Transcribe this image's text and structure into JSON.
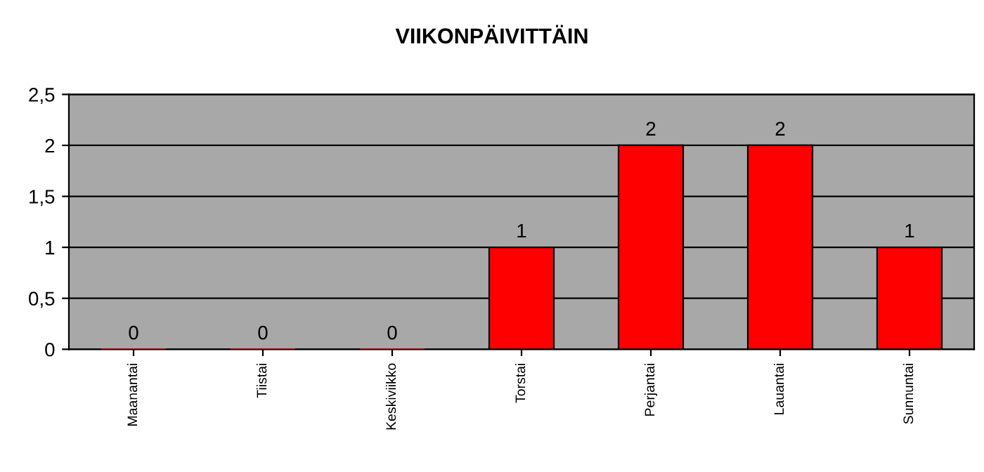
{
  "chart_data": {
    "type": "bar",
    "title": "VIIKONPÄIVITTÄIN",
    "categories": [
      "Maanantai",
      "Tiistai",
      "Keskiviikko",
      "Torstai",
      "Perjantai",
      "Lauantai",
      "Sunnuntai"
    ],
    "values": [
      0,
      0,
      0,
      1,
      2,
      2,
      1
    ],
    "color": "#ff0000",
    "ylim": [
      0,
      2.5
    ],
    "yticks": [
      0,
      {
        "value": 0.5,
        "label": "0,5"
      },
      1,
      {
        "value": 1.5,
        "label": "1,5"
      },
      2,
      {
        "value": 2.5,
        "label": "2,5"
      }
    ],
    "grid": "y",
    "data_labels": true,
    "legend": false
  }
}
